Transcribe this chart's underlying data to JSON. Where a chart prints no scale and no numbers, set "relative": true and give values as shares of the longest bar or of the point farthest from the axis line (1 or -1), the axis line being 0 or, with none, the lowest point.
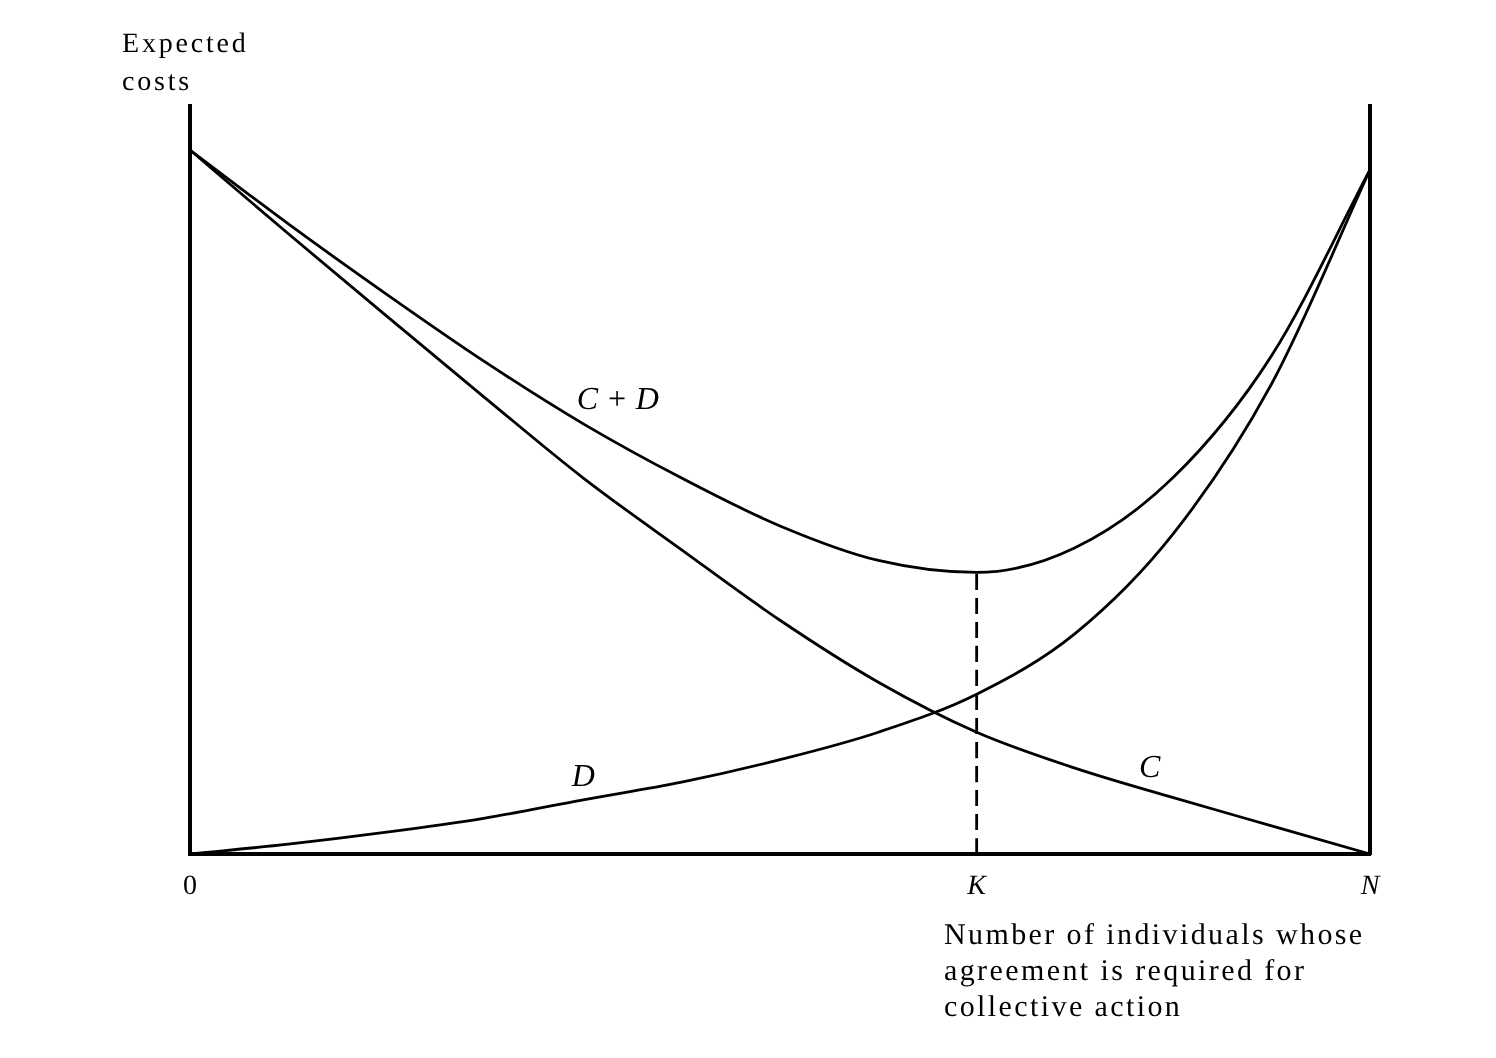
{
  "chart_data": {
    "type": "line",
    "relative": true,
    "ylabel": "Expected costs",
    "xlabel": "Number of individuals whose agreement is required for collective action",
    "categories": [
      "0",
      null,
      null,
      null,
      null,
      null,
      null,
      null,
      "K",
      null,
      null,
      null,
      "N"
    ],
    "series": [
      {
        "name": "C + D",
        "color": "#000000",
        "values": [
          1,
          0.895,
          0.795,
          0.699,
          0.611,
          0.534,
          0.466,
          0.417,
          0.4,
          0.435,
          0.535,
          0.708,
          0.972
        ]
      },
      {
        "name": "D",
        "color": "#000000",
        "values": [
          0,
          0.014,
          0.031,
          0.051,
          0.077,
          0.102,
          0.134,
          0.173,
          0.227,
          0.313,
          0.455,
          0.668,
          0.972
        ]
      },
      {
        "name": "C",
        "color": "#000000",
        "values": [
          1,
          0.881,
          0.764,
          0.648,
          0.534,
          0.432,
          0.332,
          0.244,
          0.173,
          0.122,
          0.08,
          0.04,
          0
        ]
      },
      {
        "x": [
          "K",
          "K"
        ],
        "values": [
          0,
          0.4
        ],
        "color": "#000000",
        "line_style": "dashed"
      }
    ]
  }
}
